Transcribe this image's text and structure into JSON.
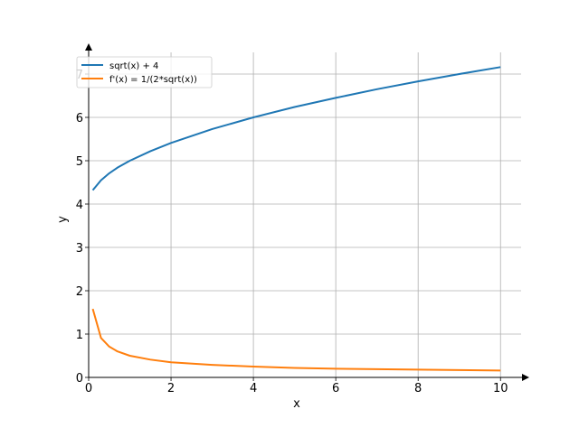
{
  "chart_data": {
    "type": "line",
    "xlabel": "x",
    "ylabel": "y",
    "xlim": [
      0,
      10.5
    ],
    "ylim": [
      0,
      7.5
    ],
    "xticks": [
      0,
      2,
      4,
      6,
      8,
      10
    ],
    "yticks": [
      0,
      1,
      2,
      3,
      4,
      5,
      6,
      7
    ],
    "grid": true,
    "legend_position": "top-left",
    "series": [
      {
        "name": "sqrt(x) + 4",
        "color": "#1f77b4",
        "x": [
          0.1,
          0.3,
          0.5,
          0.7,
          1,
          1.5,
          2,
          3,
          4,
          5,
          6,
          7,
          8,
          9,
          10
        ],
        "y": [
          4.32,
          4.55,
          4.71,
          4.84,
          5.0,
          5.22,
          5.41,
          5.73,
          6.0,
          6.24,
          6.45,
          6.65,
          6.83,
          7.0,
          7.16
        ]
      },
      {
        "name": "f'(x) = 1/(2*sqrt(x))",
        "color": "#ff7f0e",
        "x": [
          0.1,
          0.3,
          0.5,
          0.7,
          1,
          1.5,
          2,
          3,
          4,
          5,
          6,
          7,
          8,
          9,
          10
        ],
        "y": [
          1.58,
          0.91,
          0.71,
          0.6,
          0.5,
          0.41,
          0.35,
          0.29,
          0.25,
          0.22,
          0.2,
          0.19,
          0.18,
          0.17,
          0.16
        ]
      }
    ]
  }
}
